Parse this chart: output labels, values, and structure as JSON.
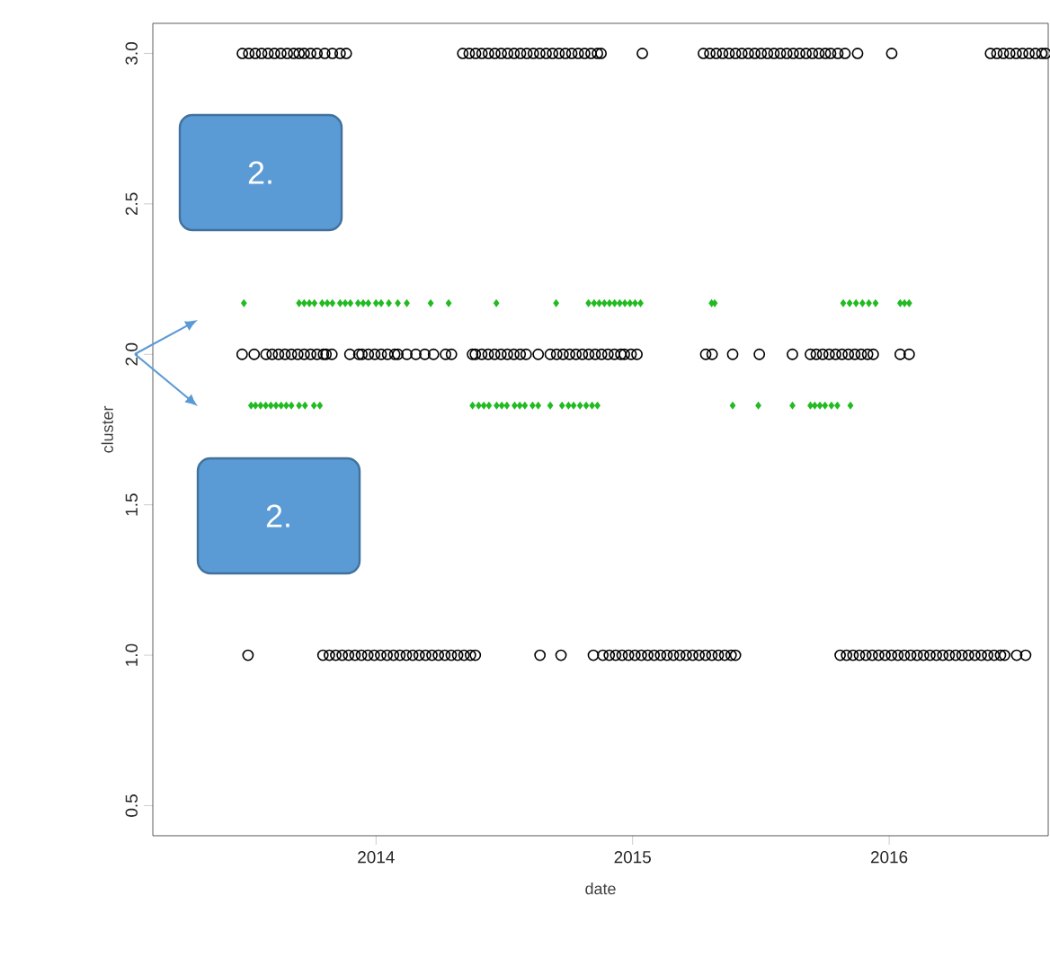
{
  "chart_data": {
    "type": "scatter",
    "xlabel": "date",
    "ylabel": "cluster",
    "xlim": [
      2013.13,
      2016.62
    ],
    "ylim": [
      0.4,
      3.1
    ],
    "xticks": [
      2014,
      2015,
      2016
    ],
    "yticks": [
      {
        "value": 0.5,
        "label": "0.5"
      },
      {
        "value": 1,
        "label": "1.0"
      },
      {
        "value": 1.5,
        "label": "1.5"
      },
      {
        "value": 2,
        "label": "2.0"
      },
      {
        "value": 2.5,
        "label": "2.5"
      },
      {
        "value": 3,
        "label": "3.0"
      }
    ],
    "marker": "circle",
    "annotations": [
      "2.",
      "2."
    ],
    "series": [
      {
        "color": "#000000",
        "x": [
          2013.479,
          2013.504,
          2013.529,
          2013.554,
          2013.579,
          2013.604,
          2013.629,
          2013.654,
          2013.679,
          2013.7,
          2013.72,
          2013.745,
          2013.77,
          2013.8,
          2013.83,
          2013.86,
          2013.884,
          2014.338,
          2014.363,
          2014.388,
          2014.413,
          2014.438,
          2014.463,
          2014.488,
          2014.513,
          2014.538,
          2014.563,
          2014.588,
          2014.613,
          2014.638,
          2014.663,
          2014.688,
          2014.713,
          2014.738,
          2014.763,
          2014.788,
          2014.813,
          2014.838,
          2014.863,
          2014.877,
          2015.038,
          2015.276,
          2015.301,
          2015.326,
          2015.351,
          2015.376,
          2015.401,
          2015.426,
          2015.451,
          2015.476,
          2015.501,
          2015.526,
          2015.551,
          2015.576,
          2015.601,
          2015.626,
          2015.651,
          2015.676,
          2015.701,
          2015.726,
          2015.751,
          2015.772,
          2015.8,
          2015.828,
          2015.877,
          2016.01,
          2016.395,
          2016.42,
          2016.445,
          2016.47,
          2016.495,
          2016.52,
          2016.545,
          2016.57,
          2016.595,
          2016.61
        ],
        "values": [
          3,
          3,
          3,
          3,
          3,
          3,
          3,
          3,
          3,
          3,
          3,
          3,
          3,
          3,
          3,
          3,
          3,
          3,
          3,
          3,
          3,
          3,
          3,
          3,
          3,
          3,
          3,
          3,
          3,
          3,
          3,
          3,
          3,
          3,
          3,
          3,
          3,
          3,
          3,
          3,
          3,
          3,
          3,
          3,
          3,
          3,
          3,
          3,
          3,
          3,
          3,
          3,
          3,
          3,
          3,
          3,
          3,
          3,
          3,
          3,
          3,
          3,
          3,
          3,
          3,
          3,
          3,
          3,
          3,
          3,
          3,
          3,
          3,
          3,
          3,
          3
        ]
      },
      {
        "color": "#000000",
        "x": [
          2013.478,
          2013.525,
          2013.571,
          2013.595,
          2013.62,
          2013.645,
          2013.67,
          2013.695,
          2013.72,
          2013.745,
          2013.77,
          2013.795,
          2013.805,
          2013.828,
          2013.898,
          2013.933,
          2013.945,
          2013.97,
          2013.995,
          2014.02,
          2014.045,
          2014.073,
          2014.085,
          2014.12,
          2014.155,
          2014.19,
          2014.224,
          2014.271,
          2014.294,
          2014.376,
          2014.387,
          2014.412,
          2014.437,
          2014.462,
          2014.487,
          2014.512,
          2014.537,
          2014.562,
          2014.585,
          2014.632,
          2014.679,
          2014.704,
          2014.729,
          2014.754,
          2014.779,
          2014.804,
          2014.829,
          2014.854,
          2014.879,
          2014.904,
          2014.929,
          2014.954,
          2014.968,
          2014.994,
          2015.017,
          2015.285,
          2015.31,
          2015.39,
          2015.494,
          2015.623,
          2015.693,
          2015.716,
          2015.741,
          2015.766,
          2015.791,
          2015.816,
          2015.841,
          2015.866,
          2015.891,
          2015.916,
          2015.938,
          2016.043,
          2016.078
        ],
        "values": [
          2,
          2,
          2,
          2,
          2,
          2,
          2,
          2,
          2,
          2,
          2,
          2,
          2,
          2,
          2,
          2,
          2,
          2,
          2,
          2,
          2,
          2,
          2,
          2,
          2,
          2,
          2,
          2,
          2,
          2,
          2,
          2,
          2,
          2,
          2,
          2,
          2,
          2,
          2,
          2,
          2,
          2,
          2,
          2,
          2,
          2,
          2,
          2,
          2,
          2,
          2,
          2,
          2,
          2,
          2,
          2,
          2,
          2,
          2,
          2,
          2,
          2,
          2,
          2,
          2,
          2,
          2,
          2,
          2,
          2,
          2,
          2,
          2
        ]
      },
      {
        "color": "#000000",
        "x": [
          2013.501,
          2013.793,
          2013.818,
          2013.843,
          2013.868,
          2013.893,
          2013.918,
          2013.943,
          2013.968,
          2013.993,
          2014.018,
          2014.043,
          2014.068,
          2014.093,
          2014.118,
          2014.143,
          2014.168,
          2014.193,
          2014.218,
          2014.243,
          2014.268,
          2014.293,
          2014.318,
          2014.343,
          2014.368,
          2014.387,
          2014.639,
          2014.721,
          2014.847,
          2014.884,
          2014.909,
          2014.934,
          2014.959,
          2014.984,
          2015.009,
          2015.034,
          2015.059,
          2015.084,
          2015.109,
          2015.134,
          2015.159,
          2015.184,
          2015.209,
          2015.234,
          2015.259,
          2015.284,
          2015.309,
          2015.334,
          2015.359,
          2015.384,
          2015.401,
          2015.809,
          2015.834,
          2015.859,
          2015.884,
          2015.909,
          2015.934,
          2015.959,
          2015.984,
          2016.009,
          2016.034,
          2016.059,
          2016.084,
          2016.109,
          2016.134,
          2016.159,
          2016.184,
          2016.209,
          2016.234,
          2016.259,
          2016.284,
          2016.309,
          2016.334,
          2016.359,
          2016.384,
          2016.409,
          2016.434,
          2016.45,
          2016.497,
          2016.532
        ],
        "values": [
          1,
          1,
          1,
          1,
          1,
          1,
          1,
          1,
          1,
          1,
          1,
          1,
          1,
          1,
          1,
          1,
          1,
          1,
          1,
          1,
          1,
          1,
          1,
          1,
          1,
          1,
          1,
          1,
          1,
          1,
          1,
          1,
          1,
          1,
          1,
          1,
          1,
          1,
          1,
          1,
          1,
          1,
          1,
          1,
          1,
          1,
          1,
          1,
          1,
          1,
          1,
          1,
          1,
          1,
          1,
          1,
          1,
          1,
          1,
          1,
          1,
          1,
          1,
          1,
          1,
          1,
          1,
          1,
          1,
          1,
          1,
          1,
          1,
          1,
          1,
          1,
          1,
          1,
          1,
          1
        ]
      },
      {
        "color": "#22bb22",
        "marker": "diamond",
        "x": [
          2013.485,
          2013.7,
          2013.72,
          2013.74,
          2013.76,
          2013.79,
          2013.81,
          2013.83,
          2013.86,
          2013.88,
          2013.9,
          2013.93,
          2013.95,
          2013.97,
          2014.0,
          2014.02,
          2014.05,
          2014.085,
          2014.12,
          2014.213,
          2014.283,
          2014.469,
          2014.702,
          2014.828,
          2014.85,
          2014.87,
          2014.89,
          2014.91,
          2014.93,
          2014.95,
          2014.97,
          2014.99,
          2015.01,
          2015.031,
          2015.308,
          2015.32,
          2015.821,
          2015.846,
          2015.871,
          2015.896,
          2015.921,
          2015.947,
          2016.043,
          2016.06,
          2016.078
        ],
        "values": [
          2.17,
          2.17,
          2.17,
          2.17,
          2.17,
          2.17,
          2.17,
          2.17,
          2.17,
          2.17,
          2.17,
          2.17,
          2.17,
          2.17,
          2.17,
          2.17,
          2.17,
          2.17,
          2.17,
          2.17,
          2.17,
          2.17,
          2.17,
          2.17,
          2.17,
          2.17,
          2.17,
          2.17,
          2.17,
          2.17,
          2.17,
          2.17,
          2.17,
          2.17,
          2.17,
          2.17,
          2.17,
          2.17,
          2.17,
          2.17,
          2.17,
          2.17,
          2.17,
          2.17,
          2.17
        ]
      },
      {
        "color": "#22bb22",
        "marker": "diamond",
        "x": [
          2013.513,
          2013.53,
          2013.55,
          2013.57,
          2013.59,
          2013.61,
          2013.63,
          2013.65,
          2013.67,
          2013.7,
          2013.723,
          2013.758,
          2013.781,
          2014.376,
          2014.4,
          2014.42,
          2014.44,
          2014.47,
          2014.49,
          2014.51,
          2014.54,
          2014.56,
          2014.58,
          2014.61,
          2014.632,
          2014.679,
          2014.725,
          2014.75,
          2014.77,
          2014.795,
          2014.819,
          2014.842,
          2014.863,
          2015.39,
          2015.49,
          2015.623,
          2015.693,
          2015.71,
          2015.73,
          2015.75,
          2015.775,
          2015.798,
          2015.849
        ],
        "values": [
          1.83,
          1.83,
          1.83,
          1.83,
          1.83,
          1.83,
          1.83,
          1.83,
          1.83,
          1.83,
          1.83,
          1.83,
          1.83,
          1.83,
          1.83,
          1.83,
          1.83,
          1.83,
          1.83,
          1.83,
          1.83,
          1.83,
          1.83,
          1.83,
          1.83,
          1.83,
          1.83,
          1.83,
          1.83,
          1.83,
          1.83,
          1.83,
          1.83,
          1.83,
          1.83,
          1.83,
          1.83,
          1.83,
          1.83,
          1.83,
          1.83,
          1.83,
          1.83
        ]
      }
    ]
  }
}
